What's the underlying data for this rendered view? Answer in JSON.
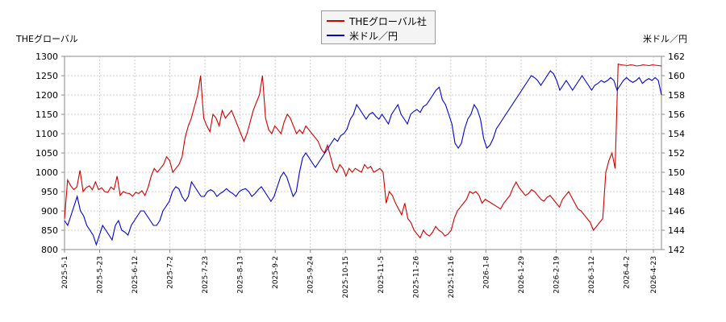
{
  "chart_data": {
    "type": "line",
    "left_axis_title": "THEグローバル",
    "right_axis_title": "米ドル／円",
    "ylim_left": [
      800,
      1300
    ],
    "ylim_right": [
      142,
      162
    ],
    "left_ticks": [
      "800",
      "850",
      "900",
      "950",
      "1000",
      "1050",
      "1100",
      "1150",
      "1200",
      "1250",
      "1300"
    ],
    "right_ticks": [
      "142",
      "144",
      "146",
      "148",
      "150",
      "152",
      "154",
      "156",
      "158",
      "160",
      "162"
    ],
    "x_ticks": [
      "2025-5-1",
      "2025-5-23",
      "2025-6-12",
      "2025-7-2",
      "2025-7-23",
      "2025-8-13",
      "2025-9-2",
      "2025-9-24",
      "2025-10-15",
      "2025-11-5",
      "2025-11-26",
      "2025-12-16",
      "2026-1-8",
      "2026-1-29",
      "2026-2-19",
      "2026-3-12",
      "2026-4-2",
      "2026-4-23"
    ],
    "grid": true,
    "legend_placement": "top-center",
    "series": [
      {
        "name": "THEグローバル社",
        "axis": "left",
        "color": "#cc0000",
        "values": [
          880,
          980,
          965,
          955,
          962,
          1005,
          950,
          960,
          965,
          955,
          975,
          955,
          960,
          950,
          948,
          962,
          955,
          990,
          940,
          950,
          946,
          945,
          938,
          948,
          945,
          952,
          940,
          960,
          990,
          1010,
          1000,
          1010,
          1020,
          1040,
          1030,
          1000,
          1010,
          1020,
          1040,
          1090,
          1120,
          1140,
          1170,
          1200,
          1250,
          1140,
          1120,
          1105,
          1150,
          1140,
          1120,
          1160,
          1140,
          1150,
          1160,
          1140,
          1120,
          1100,
          1080,
          1100,
          1130,
          1160,
          1180,
          1200,
          1250,
          1140,
          1110,
          1100,
          1120,
          1110,
          1100,
          1130,
          1150,
          1140,
          1120,
          1100,
          1110,
          1100,
          1120,
          1110,
          1100,
          1090,
          1080,
          1060,
          1050,
          1070,
          1040,
          1010,
          1000,
          1020,
          1010,
          990,
          1010,
          1000,
          1010,
          1005,
          1000,
          1020,
          1010,
          1015,
          1000,
          1005,
          1010,
          1000,
          920,
          950,
          940,
          920,
          905,
          890,
          920,
          880,
          870,
          850,
          840,
          830,
          850,
          840,
          835,
          845,
          860,
          850,
          845,
          835,
          840,
          850,
          880,
          900,
          910,
          920,
          930,
          950,
          945,
          950,
          940,
          920,
          930,
          925,
          920,
          915,
          910,
          905,
          920,
          930,
          940,
          960,
          975,
          960,
          950,
          940,
          945,
          955,
          950,
          940,
          930,
          925,
          935,
          940,
          930,
          920,
          910,
          930,
          940,
          950,
          935,
          920,
          905,
          900,
          890,
          880,
          870,
          850,
          860,
          870,
          880,
          1000,
          1030,
          1050,
          1010,
          1280,
          1278,
          1277,
          1276,
          1278,
          1277,
          1275,
          1276,
          1278,
          1277,
          1276,
          1278,
          1277,
          1276,
          1275
        ]
      },
      {
        "name": "米ドル／円",
        "axis": "right",
        "color": "#0000cc",
        "values": [
          145,
          144.5,
          145.5,
          146.5,
          147.5,
          146,
          145.5,
          144.5,
          144,
          143.5,
          142.5,
          143.5,
          144.5,
          144,
          143.5,
          143,
          144.5,
          145,
          144,
          143.8,
          143.5,
          144.5,
          145,
          145.5,
          146,
          146,
          145.5,
          145,
          144.5,
          144.5,
          145,
          146,
          146.5,
          147,
          148,
          148.5,
          148.3,
          147.5,
          147,
          147.5,
          149,
          148.5,
          148,
          147.5,
          147.5,
          148,
          148.2,
          148,
          147.5,
          147.8,
          148,
          148.3,
          148,
          147.8,
          147.5,
          148,
          148.2,
          148.3,
          148,
          147.5,
          147.8,
          148.2,
          148.5,
          148,
          147.5,
          147,
          147.5,
          148.5,
          149.5,
          150,
          149.5,
          148.5,
          147.5,
          148,
          150,
          151.5,
          152,
          151.5,
          151,
          150.5,
          151,
          151.5,
          152,
          152.5,
          153,
          153.5,
          153.2,
          153.8,
          154,
          154.5,
          155.5,
          156,
          157,
          156.5,
          156,
          155.5,
          156,
          156.2,
          155.8,
          155.5,
          156,
          155.5,
          155,
          156,
          156.5,
          157,
          156,
          155.5,
          155,
          156,
          156.3,
          156.5,
          156.2,
          156.8,
          157,
          157.5,
          158,
          158.5,
          158.8,
          157.5,
          157,
          156,
          155,
          153,
          152.5,
          153,
          154.5,
          155.5,
          156,
          157,
          156.5,
          155.5,
          153.5,
          152.5,
          152.8,
          153.5,
          154.5,
          155,
          155.5,
          156,
          156.5,
          157,
          157.5,
          158,
          158.5,
          159,
          159.5,
          160,
          159.8,
          159.5,
          159,
          159.5,
          160,
          160.5,
          160.2,
          159.5,
          158.5,
          159,
          159.5,
          159,
          158.5,
          159,
          159.5,
          160,
          159.5,
          159,
          158.5,
          159,
          159.2,
          159.5,
          159.3,
          159.5,
          159.8,
          159.5,
          158.5,
          159,
          159.5,
          159.8,
          159.5,
          159.3,
          159.5,
          159.8,
          159.2,
          159.5,
          159.7,
          159.5,
          159.8,
          159.5,
          158
        ]
      }
    ]
  }
}
